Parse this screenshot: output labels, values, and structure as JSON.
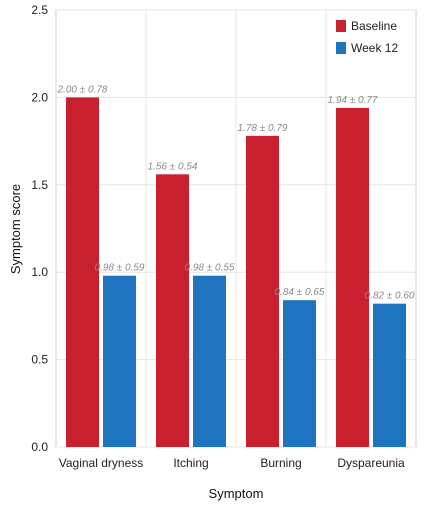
{
  "chart_data": {
    "type": "bar",
    "title": "",
    "xlabel": "Symptom",
    "ylabel": "Symptom score",
    "categories": [
      "Vaginal dryness",
      "Itching",
      "Burning",
      "Dyspareunia"
    ],
    "series": [
      {
        "name": "Baseline",
        "color": "#c8202f",
        "values": [
          2.0,
          1.56,
          1.78,
          1.94
        ],
        "labels": [
          "2.00 ± 0.78",
          "1.56 ± 0.54",
          "1.78 ± 0.79",
          "1.94 ± 0.77"
        ]
      },
      {
        "name": "Week 12",
        "color": "#1f74bf",
        "values": [
          0.98,
          0.98,
          0.84,
          0.82
        ],
        "labels": [
          "0.98 ± 0.59",
          "0.98 ± 0.55",
          "0.84 ± 0.65",
          "0.82 ± 0.60"
        ]
      }
    ],
    "ylim": [
      0,
      2.5
    ],
    "yticks": [
      "0.0",
      "0.5",
      "1.0",
      "1.5",
      "2.0",
      "2.5"
    ],
    "grid": true,
    "legend_position": "top-right"
  }
}
